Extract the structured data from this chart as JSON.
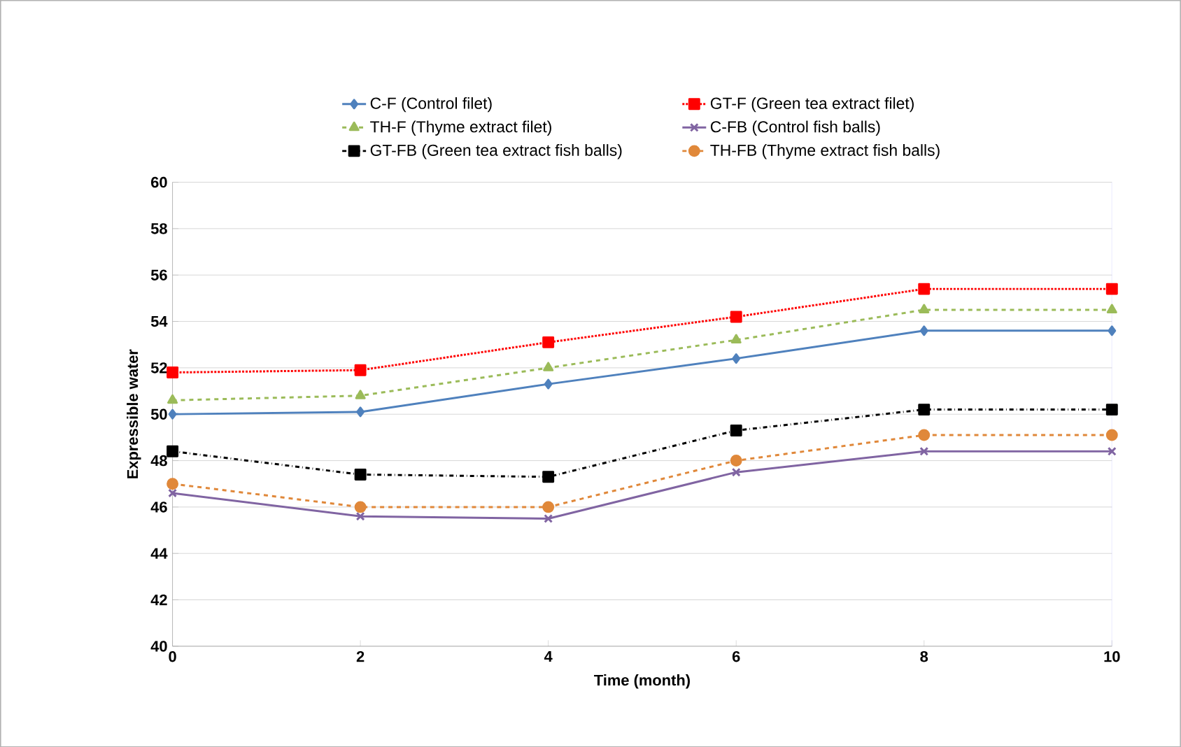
{
  "chart_data": {
    "type": "line",
    "xlabel": "Time (month)",
    "ylabel": "Expressible water",
    "x": [
      0,
      2,
      4,
      6,
      8,
      10
    ],
    "xlim": [
      0,
      10
    ],
    "xticks": [
      0,
      2,
      4,
      6,
      8,
      10
    ],
    "ylim": [
      40,
      60
    ],
    "yticks": [
      40,
      42,
      44,
      46,
      48,
      50,
      52,
      54,
      56,
      58,
      60
    ],
    "grid": "y",
    "legend": "top",
    "series": [
      {
        "name": "C-F (Control filet)",
        "color": "#4f81bd",
        "marker": "diamond",
        "line_style": "solid",
        "values": [
          50.0,
          50.1,
          51.3,
          52.4,
          53.6,
          53.6
        ]
      },
      {
        "name": "GT-F (Green tea extract filet)",
        "color": "#ff0000",
        "marker": "square",
        "line_style": "dotted",
        "values": [
          51.8,
          51.9,
          53.1,
          54.2,
          55.4,
          55.4
        ]
      },
      {
        "name": "TH-F (Thyme extract filet)",
        "color": "#9bbb59",
        "marker": "triangle",
        "line_style": "dashed",
        "values": [
          50.6,
          50.8,
          52.0,
          53.2,
          54.5,
          54.5
        ]
      },
      {
        "name": "C-FB (Control fish balls)",
        "color": "#8064a2",
        "marker": "cross",
        "line_style": "solid",
        "values": [
          46.6,
          45.6,
          45.5,
          47.5,
          48.4,
          48.4
        ]
      },
      {
        "name": "GT-FB (Green tea extract fish balls)",
        "color": "#000000",
        "marker": "square",
        "line_style": "dashdot",
        "values": [
          48.4,
          47.4,
          47.3,
          49.3,
          50.2,
          50.2
        ]
      },
      {
        "name": "TH-FB (Thyme extract fish balls)",
        "color": "#e0883a",
        "marker": "circle",
        "line_style": "dashed",
        "values": [
          47.0,
          46.0,
          46.0,
          48.0,
          49.1,
          49.1
        ]
      }
    ]
  }
}
